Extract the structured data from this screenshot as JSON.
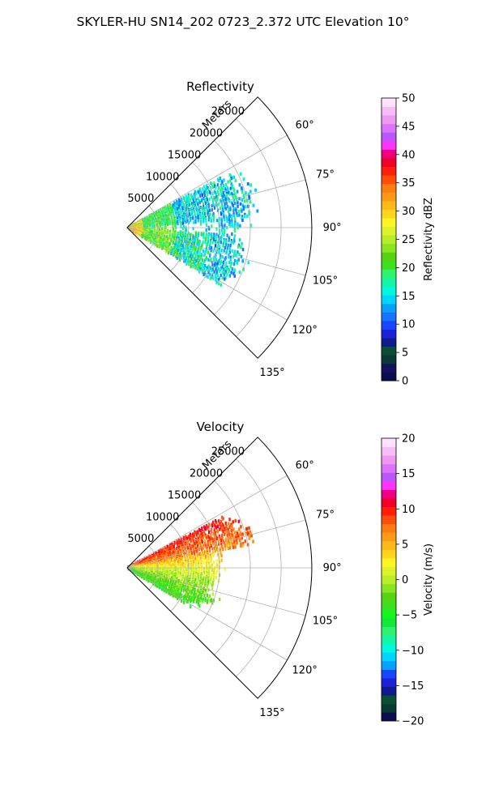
{
  "figure": {
    "suptitle": "SKYLER-HU  SN14_202  0723_2.372 UTC Elevation 10°"
  },
  "chart_data": [
    {
      "type": "heatmap",
      "subtype": "polar-sector",
      "title": "Reflectivity",
      "radial_axis_label": "Meters",
      "radial_ticks": [
        5000,
        10000,
        15000,
        20000,
        25000
      ],
      "radial_tick_labels": [
        "5000",
        "10000",
        "15000",
        "20000",
        "25000"
      ],
      "rlim": [
        0,
        30000
      ],
      "angle_ticks": [
        60,
        75,
        90,
        105,
        120,
        135
      ],
      "angle_tick_labels": [
        "60°",
        "75°",
        "90°",
        "105°",
        "120°",
        "135°"
      ],
      "theta_range": [
        45,
        135
      ],
      "grid": true,
      "colorbar": {
        "label": "Reflectivity dBZ",
        "vmin": 0,
        "vmax": 50,
        "ticks": [
          0,
          5,
          10,
          15,
          20,
          25,
          30,
          35,
          40,
          45,
          50
        ],
        "tick_labels": [
          "0",
          "5",
          "10",
          "15",
          "20",
          "25",
          "30",
          "35",
          "40",
          "45",
          "50"
        ]
      },
      "data_summary": {
        "angle_extent": [
          62,
          122
        ],
        "range_extent": [
          0,
          22000
        ],
        "lobes": [
          {
            "angle_range": [
              62,
              86
            ],
            "range": [
              0,
              22000
            ],
            "dominant_value": 15
          },
          {
            "angle_range": [
              94,
              122
            ],
            "range": [
              0,
              21000
            ],
            "dominant_value": 18
          }
        ],
        "near_radar_value": 28
      }
    },
    {
      "type": "heatmap",
      "subtype": "polar-sector",
      "title": "Velocity",
      "radial_axis_label": "Meters",
      "radial_ticks": [
        5000,
        10000,
        15000,
        20000,
        25000
      ],
      "radial_tick_labels": [
        "5000",
        "10000",
        "15000",
        "20000",
        "25000"
      ],
      "rlim": [
        0,
        30000
      ],
      "angle_ticks": [
        60,
        75,
        90,
        105,
        120,
        135
      ],
      "angle_tick_labels": [
        "60°",
        "75°",
        "90°",
        "105°",
        "120°",
        "135°"
      ],
      "theta_range": [
        45,
        135
      ],
      "grid": true,
      "colorbar": {
        "label": "Velocity (m/s)",
        "vmin": -20,
        "vmax": 20,
        "ticks": [
          -20,
          -15,
          -10,
          -5,
          0,
          5,
          10,
          15,
          20
        ],
        "tick_labels": [
          "−20",
          "−15",
          "−10",
          "−5",
          "0",
          "5",
          "10",
          "15",
          "20"
        ]
      },
      "data_summary": {
        "angle_extent": [
          62,
          122
        ],
        "range_extent": [
          0,
          22000
        ],
        "zones": [
          {
            "angle_range": [
              62,
              80
            ],
            "dominant_value": 10
          },
          {
            "angle_range": [
              80,
              92
            ],
            "dominant_value": 4
          },
          {
            "angle_range": [
              92,
              108
            ],
            "dominant_value": 1
          },
          {
            "angle_range": [
              108,
              122
            ],
            "dominant_value": -3
          }
        ]
      }
    }
  ],
  "colormaps": {
    "reflectivity": [
      "#0b0d4e",
      "#11115e",
      "#0a3a2f",
      "#0b4d36",
      "#0f1a8c",
      "#1e22d6",
      "#1746ff",
      "#1873ff",
      "#07a1ff",
      "#00d6ff",
      "#00f7e0",
      "#14f5a5",
      "#2ef36d",
      "#3fdf20",
      "#54d512",
      "#88e51f",
      "#b8ee27",
      "#dcf22a",
      "#fff522",
      "#ffd61c",
      "#ffb81a",
      "#ff9a18",
      "#ff7c12",
      "#ff4d0c",
      "#ff1e08",
      "#ee0028",
      "#f0007e",
      "#ff33ff",
      "#bb55ff",
      "#dc74ff",
      "#ee99ee",
      "#f6bef6",
      "#fde3fd"
    ],
    "velocity": [
      "#0b0d4e",
      "#0a3a2f",
      "#0b4d36",
      "#0f1a8c",
      "#1e22d6",
      "#1746ff",
      "#07a1ff",
      "#00d6ff",
      "#00f7e0",
      "#14f5a5",
      "#2ef36d",
      "#12e83a",
      "#16f51b",
      "#3fdf20",
      "#54d512",
      "#88e51f",
      "#b8ee27",
      "#dcf22a",
      "#fff522",
      "#ffd61c",
      "#ffb81a",
      "#ff9a18",
      "#ff7c12",
      "#ff4d0c",
      "#ff1e08",
      "#ee0028",
      "#f0007e",
      "#ff33ff",
      "#bb55ff",
      "#dc74ff",
      "#ee99ee",
      "#f6bef6",
      "#fde3fd"
    ]
  }
}
